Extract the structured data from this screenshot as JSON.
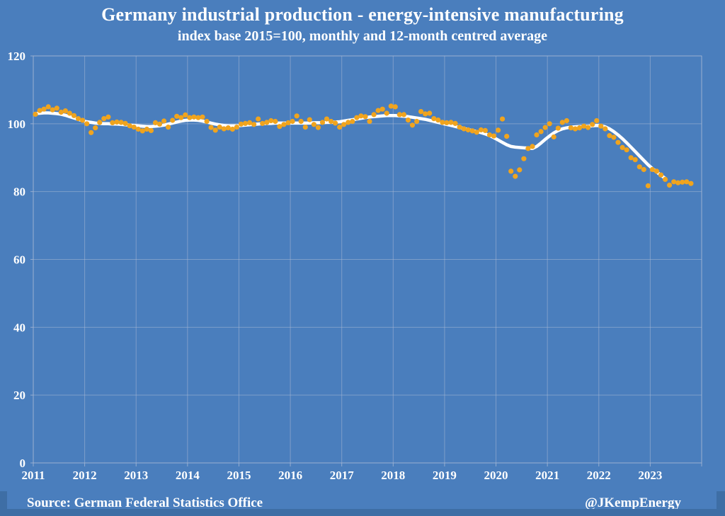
{
  "title": "Germany industrial production - energy-intensive manufacturing",
  "subtitle": "index base 2015=100, monthly and 12-month centred average",
  "footer": {
    "source": "Source: German Federal Statistics Office",
    "credit": "@JKempEnergy"
  },
  "colors": {
    "background": "#4A7EBD",
    "edge_band": "#3E6EA5",
    "dot": "#F0A41E",
    "average_line": "#FFFFFF",
    "gridline": "#A7B8D4",
    "text": "#FFFFFF"
  },
  "chart_data": {
    "type": "scatter",
    "title": "Germany industrial production - energy-intensive manufacturing",
    "subtitle": "index base 2015=100, monthly and 12-month centred average",
    "xlabel": "",
    "ylabel": "",
    "grid": true,
    "legend": "none",
    "ylim": [
      0,
      120
    ],
    "y_ticks": [
      0,
      20,
      40,
      60,
      80,
      100,
      120
    ],
    "x_tick_labels": [
      "2011",
      "2012",
      "2013",
      "2014",
      "2015",
      "2016",
      "2017",
      "2018",
      "2019",
      "2020",
      "2021",
      "2022",
      "2023"
    ],
    "x_monthly_start": "2011-01",
    "x_monthly_end": "2023-10",
    "series": [
      {
        "name": "monthly",
        "style": "scatter",
        "values": [
          102.8,
          103.9,
          104.3,
          105.0,
          104.1,
          104.6,
          103.4,
          103.8,
          103.1,
          102.4,
          101.5,
          101.0,
          100.0,
          97.4,
          98.8,
          100.4,
          101.5,
          102.0,
          100.3,
          100.5,
          100.4,
          100.1,
          99.4,
          99.0,
          98.4,
          97.9,
          98.4,
          98.0,
          100.3,
          99.9,
          100.8,
          99.0,
          101.0,
          102.2,
          101.8,
          102.6,
          101.8,
          102.0,
          101.8,
          102.0,
          100.7,
          98.9,
          98.1,
          99.0,
          98.5,
          98.8,
          98.4,
          99.0,
          99.9,
          100.1,
          100.3,
          99.8,
          101.4,
          100.1,
          100.4,
          100.9,
          100.7,
          99.2,
          99.8,
          100.3,
          100.7,
          102.3,
          100.7,
          99.0,
          101.2,
          99.8,
          98.9,
          100.4,
          101.4,
          100.7,
          100.2,
          99.0,
          99.8,
          100.4,
          100.7,
          101.8,
          102.3,
          102.1,
          100.7,
          102.7,
          103.9,
          104.3,
          103.1,
          105.2,
          105.0,
          102.7,
          102.7,
          101.1,
          99.6,
          100.7,
          103.6,
          102.9,
          103.1,
          101.5,
          101.1,
          100.4,
          100.3,
          100.4,
          100.1,
          99.0,
          98.5,
          98.2,
          97.9,
          97.5,
          98.2,
          98.0,
          96.7,
          96.4,
          98.1,
          101.4,
          96.3,
          86.0,
          84.5,
          86.4,
          89.7,
          92.7,
          93.3,
          96.7,
          97.7,
          98.9,
          100.0,
          96.1,
          98.7,
          100.4,
          100.9,
          98.8,
          98.5,
          98.8,
          99.3,
          98.9,
          99.8,
          100.9,
          99.3,
          98.5,
          96.5,
          96.0,
          94.5,
          93.0,
          92.3,
          90.0,
          89.4,
          87.3,
          86.5,
          81.7,
          86.5,
          86.0,
          84.9,
          83.6,
          81.9,
          82.9,
          82.6,
          82.8,
          82.9,
          82.4
        ]
      },
      {
        "name": "12-month centred average",
        "style": "line",
        "values": [
          103.0,
          103.1,
          103.2,
          103.2,
          103.1,
          103.0,
          102.8,
          102.5,
          102.1,
          101.7,
          101.3,
          100.9,
          100.6,
          100.4,
          100.2,
          100.1,
          100.0,
          100.0,
          99.9,
          99.9,
          99.8,
          99.7,
          99.6,
          99.5,
          99.4,
          99.3,
          99.2,
          99.2,
          99.3,
          99.4,
          99.6,
          99.9,
          100.2,
          100.5,
          100.8,
          101.0,
          101.1,
          101.1,
          101.0,
          100.8,
          100.5,
          100.2,
          99.9,
          99.7,
          99.5,
          99.4,
          99.4,
          99.4,
          99.5,
          99.6,
          99.7,
          99.8,
          99.9,
          100.0,
          100.1,
          100.1,
          100.2,
          100.2,
          100.2,
          100.2,
          100.2,
          100.2,
          100.2,
          100.2,
          100.2,
          100.3,
          100.3,
          100.3,
          100.4,
          100.4,
          100.5,
          100.6,
          100.8,
          101.0,
          101.2,
          101.4,
          101.6,
          101.8,
          102.0,
          102.1,
          102.2,
          102.3,
          102.4,
          102.4,
          102.4,
          102.3,
          102.2,
          102.1,
          101.9,
          101.7,
          101.5,
          101.3,
          101.0,
          100.7,
          100.4,
          100.1,
          99.8,
          99.5,
          99.2,
          98.9,
          98.6,
          98.3,
          98.0,
          97.7,
          97.4,
          97.0,
          96.5,
          95.9,
          95.2,
          94.5,
          93.8,
          93.3,
          93.1,
          93.0,
          92.9,
          92.8,
          92.7,
          93.3,
          94.3,
          95.4,
          96.4,
          97.3,
          98.0,
          98.5,
          98.8,
          99.0,
          99.1,
          99.2,
          99.2,
          99.3,
          99.4,
          99.5,
          99.4,
          99.1,
          98.5,
          97.7,
          96.7,
          95.6,
          94.4,
          93.1,
          91.8,
          90.5,
          89.2,
          87.9,
          86.8,
          85.8,
          84.8,
          83.9
        ]
      }
    ]
  }
}
